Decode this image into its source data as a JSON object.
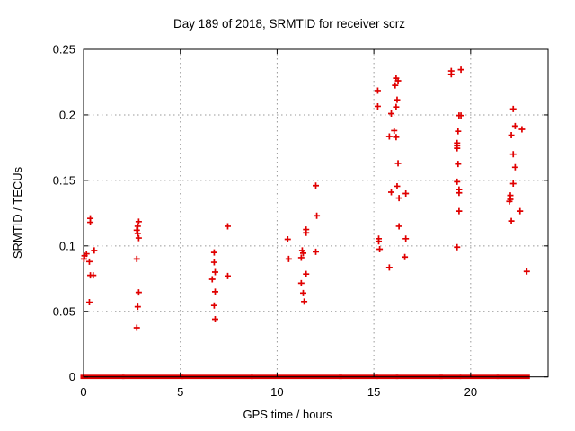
{
  "chart_data": {
    "type": "scatter",
    "title": "Day 189 of 2018, SRMTID for receiver scrz",
    "xlabel": "GPS time / hours",
    "ylabel": "SRMTID / TECUs",
    "xlim": [
      0,
      24
    ],
    "ylim": [
      0,
      0.25
    ],
    "xtick_values": [
      0,
      5,
      10,
      15,
      20
    ],
    "xtick_labels": [
      "0",
      "5",
      "10",
      "15",
      "20"
    ],
    "ytick_values": [
      0,
      0.05,
      0.1,
      0.15,
      0.2,
      0.25
    ],
    "ytick_labels": [
      "0",
      "0.05",
      "0.1",
      "0.15",
      "0.2",
      "0.25"
    ],
    "grid": true,
    "legend": "none",
    "marker": "plus",
    "marker_color": "#e00000",
    "grid_color": "#999999",
    "border_color": "#000000",
    "series": [
      {
        "name": "SRMTID",
        "points": [
          [
            0.02,
            0.09
          ],
          [
            0.05,
            0.0925
          ],
          [
            0.15,
            0.094
          ],
          [
            0.3,
            0.088
          ],
          [
            0.3,
            0.057
          ],
          [
            0.35,
            0.121
          ],
          [
            0.35,
            0.118
          ],
          [
            0.35,
            0.0775
          ],
          [
            0.5,
            0.0775
          ],
          [
            0.55,
            0.0965
          ],
          [
            2.75,
            0.112
          ],
          [
            2.75,
            0.09
          ],
          [
            2.75,
            0.0375
          ],
          [
            2.8,
            0.115
          ],
          [
            2.8,
            0.1095
          ],
          [
            2.8,
            0.0535
          ],
          [
            2.85,
            0.1185
          ],
          [
            2.85,
            0.106
          ],
          [
            2.85,
            0.0645
          ],
          [
            6.65,
            0.0745
          ],
          [
            6.75,
            0.095
          ],
          [
            6.75,
            0.0875
          ],
          [
            6.75,
            0.0545
          ],
          [
            6.8,
            0.08
          ],
          [
            6.8,
            0.065
          ],
          [
            6.8,
            0.044
          ],
          [
            7.45,
            0.115
          ],
          [
            7.45,
            0.077
          ],
          [
            10.55,
            0.105
          ],
          [
            10.6,
            0.09
          ],
          [
            11.25,
            0.091
          ],
          [
            11.25,
            0.0715
          ],
          [
            11.3,
            0.0965
          ],
          [
            11.35,
            0.0945
          ],
          [
            11.35,
            0.064
          ],
          [
            11.4,
            0.0575
          ],
          [
            11.5,
            0.1125
          ],
          [
            11.5,
            0.11
          ],
          [
            11.5,
            0.0785
          ],
          [
            12.0,
            0.146
          ],
          [
            12.0,
            0.0955
          ],
          [
            12.05,
            0.123
          ],
          [
            15.2,
            0.2185
          ],
          [
            15.2,
            0.2065
          ],
          [
            15.25,
            0.1055
          ],
          [
            15.25,
            0.1035
          ],
          [
            15.3,
            0.0975
          ],
          [
            15.8,
            0.1835
          ],
          [
            15.8,
            0.0835
          ],
          [
            15.9,
            0.201
          ],
          [
            15.9,
            0.141
          ],
          [
            16.05,
            0.188
          ],
          [
            16.1,
            0.2225
          ],
          [
            16.15,
            0.228
          ],
          [
            16.15,
            0.206
          ],
          [
            16.15,
            0.183
          ],
          [
            16.2,
            0.2115
          ],
          [
            16.2,
            0.1455
          ],
          [
            16.25,
            0.226
          ],
          [
            16.25,
            0.163
          ],
          [
            16.3,
            0.1365
          ],
          [
            16.3,
            0.115
          ],
          [
            16.6,
            0.0915
          ],
          [
            16.65,
            0.14
          ],
          [
            16.65,
            0.1055
          ],
          [
            19.0,
            0.2335
          ],
          [
            19.0,
            0.231
          ],
          [
            19.3,
            0.1785
          ],
          [
            19.3,
            0.1765
          ],
          [
            19.3,
            0.1745
          ],
          [
            19.3,
            0.149
          ],
          [
            19.3,
            0.099
          ],
          [
            19.35,
            0.1875
          ],
          [
            19.35,
            0.1625
          ],
          [
            19.4,
            0.1995
          ],
          [
            19.4,
            0.143
          ],
          [
            19.4,
            0.1405
          ],
          [
            19.4,
            0.1265
          ],
          [
            19.5,
            0.2345
          ],
          [
            19.5,
            0.1995
          ],
          [
            22.0,
            0.134
          ],
          [
            22.05,
            0.1385
          ],
          [
            22.05,
            0.1355
          ],
          [
            22.1,
            0.1845
          ],
          [
            22.1,
            0.119
          ],
          [
            22.2,
            0.2045
          ],
          [
            22.2,
            0.17
          ],
          [
            22.2,
            0.1475
          ],
          [
            22.3,
            0.1915
          ],
          [
            22.3,
            0.16
          ],
          [
            22.55,
            0.1265
          ],
          [
            22.65,
            0.189
          ],
          [
            22.9,
            0.0805
          ]
        ]
      }
    ],
    "zero_value_band": {
      "value": 0,
      "note": "dense run of points at SRMTID = 0 drawn as near-continuous band",
      "segments_hours": [
        [
          0,
          1.95
        ],
        [
          2.15,
          5.0
        ],
        [
          5.2,
          8.6
        ],
        [
          8.8,
          13.2
        ],
        [
          13.35,
          15.05
        ],
        [
          15.3,
          16.1
        ],
        [
          16.3,
          18.4
        ],
        [
          18.55,
          19.35
        ],
        [
          19.6,
          21.3
        ],
        [
          21.5,
          22.9
        ]
      ]
    }
  }
}
